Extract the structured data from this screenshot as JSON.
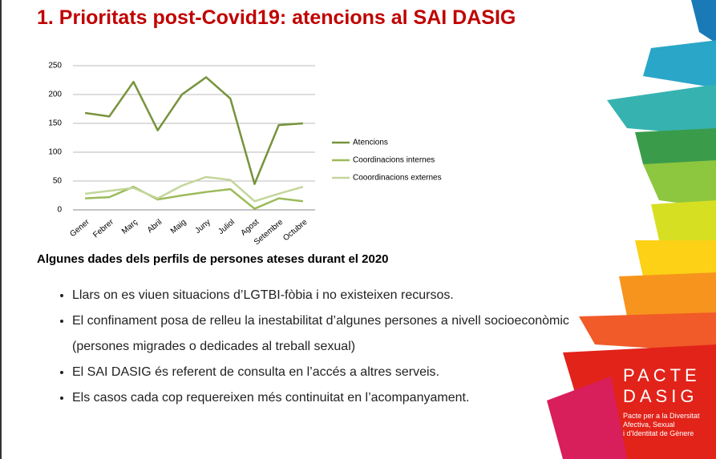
{
  "title": "1. Prioritats post-Covid19: atencions al SAI DASIG",
  "chart_data": {
    "type": "line",
    "categories": [
      "Gener",
      "Febrer",
      "Març",
      "Abril",
      "Maig",
      "Juny",
      "Juliol",
      "Agost",
      "Setembre",
      "Octubre"
    ],
    "series": [
      {
        "name": "Atencions",
        "color": "#77933c",
        "values": [
          168,
          162,
          222,
          138,
          200,
          230,
          193,
          45,
          147,
          150
        ]
      },
      {
        "name": "Coordinacions internes",
        "color": "#9bbb59",
        "values": [
          20,
          22,
          40,
          18,
          25,
          31,
          36,
          2,
          20,
          15
        ]
      },
      {
        "name": "Cooordinacions externes",
        "color": "#c3d69b",
        "values": [
          28,
          33,
          38,
          20,
          42,
          57,
          52,
          15,
          28,
          40
        ]
      }
    ],
    "ylim": [
      0,
      250
    ],
    "yticks": [
      0,
      50,
      100,
      150,
      200,
      250
    ],
    "grid": true,
    "legend": "right"
  },
  "subtitle": "Algunes dades dels perfils de persones ateses durant el 2020",
  "bullets": [
    "Llars on es viuen situacions d’LGTBI-fòbia i no existeixen recursos.",
    "El confinament posa de relleu la inestabilitat d’algunes persones a nivell socioeconòmic (persones migrades o dedicades al treball sexual)",
    "El SAI DASIG és referent de consulta en l’accés a altres serveis.",
    "Els casos cada cop requereixen més continuitat en l’acompanyament."
  ],
  "logo": {
    "name": "PACTE",
    "name2": "DASIG",
    "lines": [
      "Pacte per a la Diversitat",
      "Afectiva, Sexual",
      "i d'Identitat de Gènere"
    ]
  }
}
